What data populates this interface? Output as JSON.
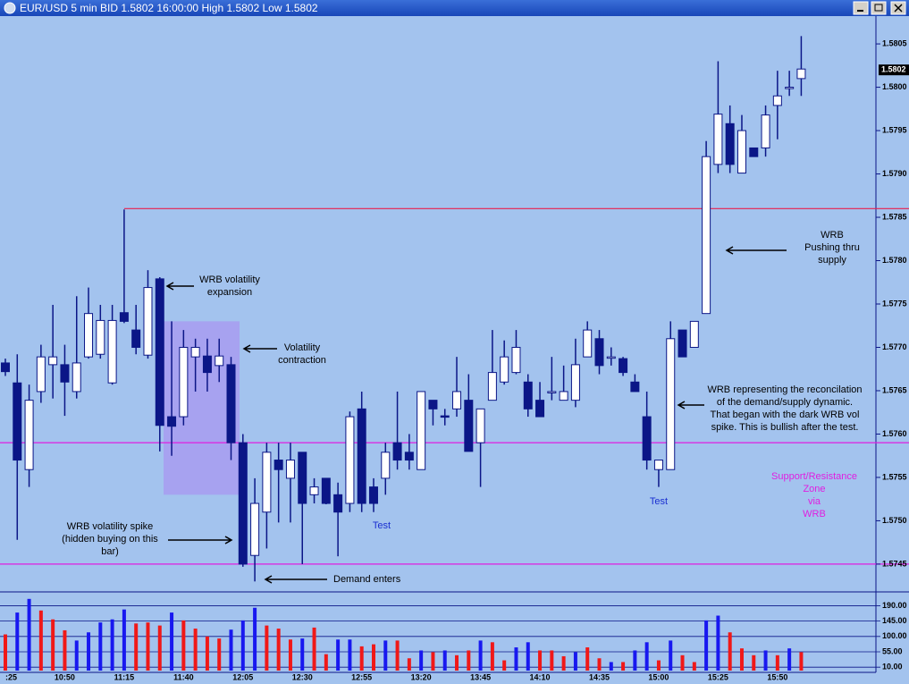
{
  "chart_data": {
    "type": "candlestick",
    "title": "EUR/USD 5 min BID 1.5802 16:00:00 High 1.5802 Low 1.5802",
    "categories": [
      ":25",
      null,
      null,
      null,
      null,
      "10:50",
      null,
      null,
      null,
      null,
      "11:15",
      null,
      null,
      null,
      null,
      "11:40",
      null,
      null,
      null,
      null,
      "12:05",
      null,
      null,
      null,
      null,
      "12:30",
      null,
      null,
      null,
      null,
      "12:55",
      null,
      null,
      null,
      null,
      "13:20",
      null,
      null,
      null,
      null,
      "13:45",
      null,
      null,
      null,
      null,
      "14:10",
      null,
      null,
      null,
      null,
      "14:35",
      null,
      null,
      null,
      null,
      "15:00",
      null,
      null,
      null,
      null,
      "15:25",
      null,
      null,
      null,
      null,
      "15:50",
      null,
      null
    ],
    "open": [
      1.57682,
      1.57659,
      1.57559,
      1.57649,
      1.5768,
      1.5768,
      1.57649,
      1.57689,
      1.57692,
      1.57659,
      1.5774,
      1.5772,
      1.57691,
      1.57779,
      1.5762,
      1.5762,
      1.57689,
      1.5769,
      1.57679,
      1.5768,
      1.5759,
      1.5746,
      1.5751,
      1.5757,
      1.57549,
      1.57579,
      1.5753,
      1.57549,
      1.5753,
      1.5752,
      1.57629,
      1.57539,
      1.57549,
      1.5759,
      1.57579,
      1.57559,
      1.57639,
      1.57621,
      1.57629,
      1.57639,
      1.5759,
      1.57639,
      1.5766,
      1.57671,
      1.5766,
      1.57639,
      1.57649,
      1.57639,
      1.57639,
      1.57689,
      1.5771,
      1.57689,
      1.57687,
      1.5766,
      1.5762,
      1.57559,
      1.57559,
      1.5772,
      1.577,
      1.57739,
      1.57911,
      1.57958,
      1.57901,
      1.5793,
      1.5793,
      1.57979,
      1.58,
      1.5801
    ],
    "high": [
      1.57687,
      1.57692,
      1.57657,
      1.57703,
      1.57749,
      1.57703,
      1.57759,
      1.57769,
      1.57749,
      1.57749,
      1.57859,
      1.57749,
      1.57789,
      1.57781,
      1.5773,
      1.5772,
      1.5771,
      1.5771,
      1.5771,
      1.57689,
      1.576,
      1.57549,
      1.5759,
      1.5759,
      1.5759,
      1.57579,
      1.57549,
      1.57549,
      1.57544,
      1.57626,
      1.57649,
      1.57549,
      1.5759,
      1.57649,
      1.576,
      1.57649,
      1.57639,
      1.57629,
      1.57689,
      1.57669,
      1.57629,
      1.5772,
      1.57708,
      1.5772,
      1.57669,
      1.5766,
      1.57689,
      1.57679,
      1.5771,
      1.5773,
      1.5772,
      1.577,
      1.57689,
      1.57669,
      1.57649,
      1.5757,
      1.5773,
      1.5772,
      1.5773,
      1.57938,
      1.5803,
      1.57979,
      1.57968,
      1.5793,
      1.57979,
      1.58019,
      1.58019,
      1.58059
    ],
    "low": [
      1.57667,
      1.57478,
      1.57539,
      1.57636,
      1.57641,
      1.57621,
      1.57641,
      1.57687,
      1.57687,
      1.57657,
      1.57728,
      1.57692,
      1.57687,
      1.5758,
      1.57575,
      1.5761,
      1.57649,
      1.57649,
      1.5766,
      1.5757,
      1.57447,
      1.5743,
      1.57468,
      1.57498,
      1.57498,
      1.5745,
      1.5752,
      1.57519,
      1.57459,
      1.5751,
      1.5751,
      1.5751,
      1.5753,
      1.57559,
      1.57559,
      1.57559,
      1.5761,
      1.5761,
      1.5762,
      1.5758,
      1.57539,
      1.57639,
      1.57657,
      1.57669,
      1.5762,
      1.5762,
      1.57639,
      1.57639,
      1.57631,
      1.57689,
      1.57669,
      1.57679,
      1.57667,
      1.57649,
      1.57559,
      1.57539,
      1.57559,
      1.57689,
      1.577,
      1.57739,
      1.57901,
      1.57901,
      1.57901,
      1.5792,
      1.5792,
      1.5794,
      1.5799,
      1.5799
    ],
    "close": [
      1.57672,
      1.5757,
      1.57639,
      1.57689,
      1.57689,
      1.5766,
      1.57682,
      1.57739,
      1.57731,
      1.57731,
      1.5773,
      1.577,
      1.57769,
      1.5761,
      1.57609,
      1.577,
      1.577,
      1.57671,
      1.5769,
      1.5759,
      1.5745,
      1.5752,
      1.57579,
      1.57559,
      1.5757,
      1.5752,
      1.57539,
      1.5752,
      1.5751,
      1.5762,
      1.5752,
      1.5752,
      1.57579,
      1.5757,
      1.5757,
      1.57649,
      1.57629,
      1.5762,
      1.57649,
      1.5758,
      1.57629,
      1.57671,
      1.57689,
      1.577,
      1.57629,
      1.5762,
      1.57649,
      1.57649,
      1.5768,
      1.5772,
      1.57679,
      1.57689,
      1.57671,
      1.57649,
      1.5757,
      1.5757,
      1.5771,
      1.57689,
      1.5773,
      1.5792,
      1.57969,
      1.57911,
      1.5795,
      1.5792,
      1.57968,
      1.5799,
      1.58,
      1.58021
    ],
    "up_color": "#ffffff",
    "down_color": "#0b1687",
    "ylim": [
      1.5742,
      1.5808
    ],
    "yticks": [
      1.5745,
      {
        "value": 1.575,
        "label": "1.5750"
      },
      1.5755,
      {
        "value": 1.576,
        "label": "1.5760"
      },
      1.5765,
      {
        "value": 1.577,
        "label": "1.5770"
      },
      1.5775,
      {
        "value": 1.578,
        "label": "1.5780"
      },
      1.5785,
      {
        "value": 1.579,
        "label": "1.5790"
      },
      1.5795,
      {
        "value": 1.58,
        "label": "1.5800"
      },
      1.5805
    ],
    "last_price": 1.5802,
    "lines": [
      {
        "value": 1.5786,
        "color": "#e8204e"
      },
      {
        "value": 1.5759,
        "color": "#e01ee0"
      },
      {
        "value": 1.5745,
        "color": "#e01ee0"
      }
    ],
    "zone": {
      "ylim": [
        1.5753,
        1.5773
      ],
      "color": "#a89cf0"
    },
    "annotations": [
      {
        "lines": [
          "WRB volatility",
          "expansion"
        ],
        "color": "#000000"
      },
      {
        "lines": [
          "Volatility",
          "contraction"
        ],
        "color": "#000000"
      },
      {
        "lines": [
          "WRB volatility spike",
          "(hidden buying on this",
          "bar)"
        ],
        "color": "#000000"
      },
      {
        "lines": [
          "Demand enters"
        ],
        "color": "#000000"
      },
      {
        "lines": [
          "Test"
        ],
        "color": "#1a2fd0"
      },
      {
        "lines": [
          "Test"
        ],
        "color": "#1a2fd0"
      },
      {
        "lines": [
          "WRB",
          "Pushing thru",
          "supply"
        ],
        "color": "#000000"
      },
      {
        "lines": [
          "WRB representing the reconcilation",
          "of the demand/supply dynamic.",
          "That began with the dark WRB vol",
          "spike. This is bullish after the test."
        ],
        "color": "#000000"
      },
      {
        "lines": [
          "Support/Resistance",
          "Zone",
          "via",
          "WRB"
        ],
        "color": "#e01ee0"
      }
    ],
    "volume": {
      "values": [
        106,
        170,
        210,
        176,
        150,
        118,
        88,
        112,
        141,
        150,
        179,
        138,
        141,
        132,
        170,
        147,
        123,
        100,
        94,
        120,
        147,
        184,
        132,
        123,
        91,
        94,
        126,
        48,
        91,
        91,
        71,
        77,
        88,
        88,
        36,
        59,
        54,
        59,
        45,
        59,
        88,
        83,
        30,
        68,
        83,
        59,
        59,
        42,
        54,
        68,
        36,
        25,
        25,
        59,
        83,
        30,
        88,
        45,
        25,
        147,
        161,
        112,
        65,
        45,
        59,
        45,
        65,
        54
      ],
      "colors": [
        "#f01818",
        "#1818f0",
        "#1818f0",
        "#f01818",
        "#f01818",
        "#f01818",
        "#1818f0",
        "#1818f0",
        "#1818f0",
        "#1818f0",
        "#1818f0",
        "#f01818",
        "#f01818",
        "#f01818",
        "#1818f0",
        "#f01818",
        "#f01818",
        "#f01818",
        "#f01818",
        "#1818f0",
        "#1818f0",
        "#1818f0",
        "#f01818",
        "#f01818",
        "#f01818",
        "#1818f0",
        "#f01818",
        "#f01818",
        "#1818f0",
        "#1818f0",
        "#f01818",
        "#f01818",
        "#1818f0",
        "#f01818",
        "#f01818",
        "#1818f0",
        "#f01818",
        "#1818f0",
        "#f01818",
        "#f01818",
        "#1818f0",
        "#f01818",
        "#f01818",
        "#1818f0",
        "#1818f0",
        "#f01818",
        "#f01818",
        "#f01818",
        "#1818f0",
        "#f01818",
        "#f01818",
        "#1818f0",
        "#f01818",
        "#1818f0",
        "#1818f0",
        "#f01818",
        "#1818f0",
        "#f01818",
        "#f01818",
        "#1818f0",
        "#1818f0",
        "#f01818",
        "#f01818",
        "#f01818",
        "#1818f0",
        "#f01818",
        "#1818f0",
        "#f01818"
      ],
      "ylim": [
        0,
        220
      ],
      "yticks": [
        {
          "value": 10,
          "label": "10.00"
        },
        {
          "value": 55,
          "label": "55.00"
        },
        {
          "value": 100,
          "label": "100.00"
        },
        {
          "value": 145,
          "label": "145.00"
        },
        {
          "value": 190,
          "label": "190.00"
        }
      ]
    }
  }
}
